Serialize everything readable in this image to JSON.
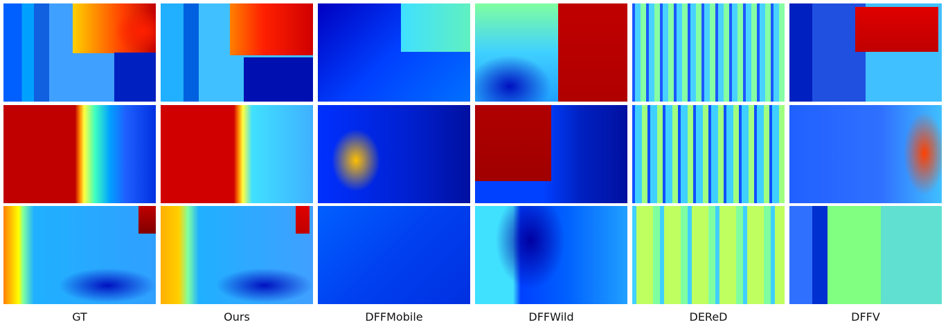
{
  "columns": [
    "GT",
    "Ours",
    "DFFMobile",
    "DFFWild",
    "DEReD",
    "DFFV"
  ]
}
